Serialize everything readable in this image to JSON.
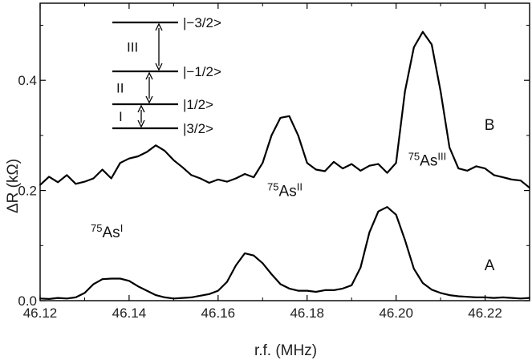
{
  "chart_data": {
    "type": "line",
    "xlabel": "r.f. (MHz)",
    "ylabel": "ΔR (kΩ)",
    "xlim": [
      46.12,
      46.23
    ],
    "ylim": [
      0.0,
      0.54
    ],
    "xticks": [
      46.12,
      46.14,
      46.16,
      46.18,
      46.2,
      46.22
    ],
    "xtick_labels": [
      "46.12",
      "46.14",
      "46.16",
      "46.18",
      "46.20",
      "46.22"
    ],
    "yticks": [
      0.0,
      0.2,
      0.4
    ],
    "ytick_labels": [
      "0.0",
      "0.2",
      "0.4"
    ],
    "grid": false,
    "series": [
      {
        "name": "A",
        "x": [
          46.12,
          46.122,
          46.124,
          46.126,
          46.128,
          46.13,
          46.132,
          46.134,
          46.136,
          46.138,
          46.14,
          46.142,
          46.144,
          46.146,
          46.148,
          46.15,
          46.152,
          46.154,
          46.156,
          46.158,
          46.16,
          46.162,
          46.164,
          46.166,
          46.168,
          46.17,
          46.172,
          46.174,
          46.176,
          46.178,
          46.18,
          46.182,
          46.184,
          46.186,
          46.188,
          46.19,
          46.192,
          46.194,
          46.196,
          46.198,
          46.2,
          46.202,
          46.204,
          46.206,
          46.208,
          46.21,
          46.212,
          46.214,
          46.216,
          46.218,
          46.22,
          46.222,
          46.224,
          46.226,
          46.228,
          46.23
        ],
        "y": [
          0.004,
          0.003,
          0.005,
          0.004,
          0.006,
          0.014,
          0.03,
          0.039,
          0.04,
          0.04,
          0.036,
          0.026,
          0.018,
          0.01,
          0.006,
          0.004,
          0.005,
          0.006,
          0.009,
          0.012,
          0.018,
          0.034,
          0.064,
          0.086,
          0.082,
          0.068,
          0.048,
          0.03,
          0.022,
          0.018,
          0.018,
          0.016,
          0.019,
          0.019,
          0.022,
          0.028,
          0.06,
          0.124,
          0.162,
          0.17,
          0.156,
          0.11,
          0.058,
          0.032,
          0.02,
          0.014,
          0.01,
          0.008,
          0.007,
          0.006,
          0.006,
          0.005,
          0.006,
          0.005,
          0.004,
          0.005
        ]
      },
      {
        "name": "B",
        "x": [
          46.12,
          46.122,
          46.124,
          46.126,
          46.128,
          46.13,
          46.132,
          46.134,
          46.136,
          46.138,
          46.14,
          46.142,
          46.144,
          46.146,
          46.148,
          46.15,
          46.152,
          46.154,
          46.156,
          46.158,
          46.16,
          46.162,
          46.164,
          46.166,
          46.168,
          46.17,
          46.172,
          46.174,
          46.176,
          46.178,
          46.18,
          46.182,
          46.184,
          46.186,
          46.188,
          46.19,
          46.192,
          46.194,
          46.196,
          46.198,
          46.2,
          46.202,
          46.204,
          46.206,
          46.208,
          46.21,
          46.212,
          46.214,
          46.216,
          46.218,
          46.22,
          46.222,
          46.224,
          46.226,
          46.228,
          46.23
        ],
        "y": [
          0.21,
          0.225,
          0.215,
          0.228,
          0.212,
          0.216,
          0.222,
          0.238,
          0.222,
          0.25,
          0.258,
          0.262,
          0.27,
          0.282,
          0.272,
          0.255,
          0.242,
          0.228,
          0.222,
          0.214,
          0.22,
          0.216,
          0.222,
          0.23,
          0.224,
          0.25,
          0.3,
          0.332,
          0.335,
          0.3,
          0.25,
          0.238,
          0.235,
          0.252,
          0.24,
          0.248,
          0.236,
          0.245,
          0.248,
          0.232,
          0.25,
          0.38,
          0.46,
          0.488,
          0.465,
          0.38,
          0.278,
          0.24,
          0.236,
          0.244,
          0.24,
          0.228,
          0.224,
          0.22,
          0.218,
          0.205
        ]
      }
    ],
    "annotations": [
      {
        "base": "75",
        "text": "As",
        "sup": "I",
        "x": 46.135,
        "y": 0.115
      },
      {
        "base": "75",
        "text": "As",
        "sup": "II",
        "x": 46.175,
        "y": 0.19
      },
      {
        "base": "75",
        "text": "As",
        "sup": "III",
        "x": 46.207,
        "y": 0.245
      }
    ],
    "trace_labels": [
      {
        "text": "B",
        "x": 46.221,
        "y": 0.31
      },
      {
        "text": "A",
        "x": 46.221,
        "y": 0.055
      }
    ],
    "energy_levels": [
      {
        "label": "|−3/2>"
      },
      {
        "label": "|−1/2>"
      },
      {
        "label": "|1/2>"
      },
      {
        "label": "|3/2>"
      }
    ],
    "transitions": [
      {
        "label": "III",
        "from_level": 0,
        "to_level": 1
      },
      {
        "label": "II",
        "from_level": 1,
        "to_level": 2
      },
      {
        "label": "I",
        "from_level": 2,
        "to_level": 3
      }
    ],
    "colors": {
      "line": "#000000",
      "axis": "#000000",
      "text": "#222222"
    }
  }
}
